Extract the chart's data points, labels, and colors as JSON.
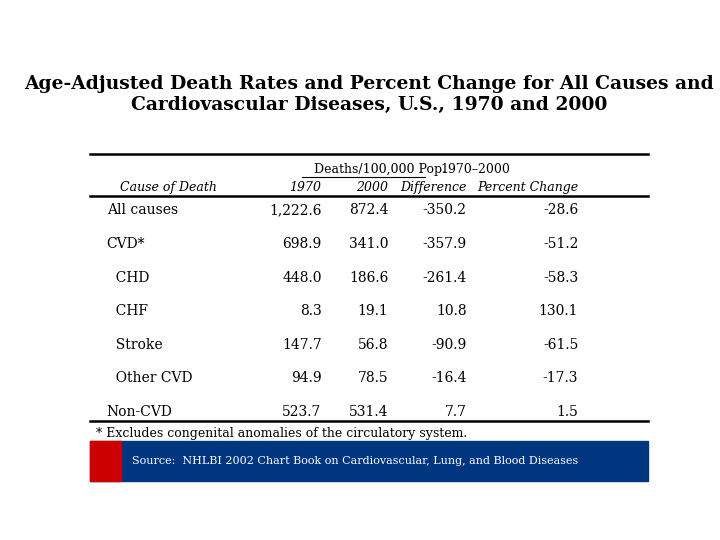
{
  "title": "Age-Adjusted Death Rates and Percent Change for All Causes and\nCardiovascular Diseases, U.S., 1970 and 2000",
  "col_header_group": "Deaths/100,000 Pop.",
  "col_header_group2": "1970–2000",
  "col_headers": [
    "Cause of Death",
    "1970",
    "2000",
    "Difference",
    "Percent Change"
  ],
  "rows": [
    [
      "All causes",
      "1,222.6",
      "872.4",
      "-350.2",
      "-28.6"
    ],
    [
      "CVD*",
      "698.9",
      "341.0",
      "-357.9",
      "-51.2"
    ],
    [
      "  CHD",
      "448.0",
      "186.6",
      "-261.4",
      "-58.3"
    ],
    [
      "  CHF",
      "8.3",
      "19.1",
      "10.8",
      "130.1"
    ],
    [
      "  Stroke",
      "147.7",
      "56.8",
      "-90.9",
      "-61.5"
    ],
    [
      "  Other CVD",
      "94.9",
      "78.5",
      "-16.4",
      "-17.3"
    ],
    [
      "Non-CVD",
      "523.7",
      "531.4",
      "7.7",
      "1.5"
    ]
  ],
  "footnote": "* Excludes congenital anomalies of the circulatory system.",
  "source_text": "Source:  NHLBI 2002 Chart Book on Cardiovascular, Lung, and Blood Diseases",
  "bg_color": "#ffffff",
  "footer_bg_color": "#003580",
  "footer_red_color": "#cc0000",
  "title_fontsize": 13.5,
  "data_fontsize": 10,
  "footnote_fontsize": 9
}
